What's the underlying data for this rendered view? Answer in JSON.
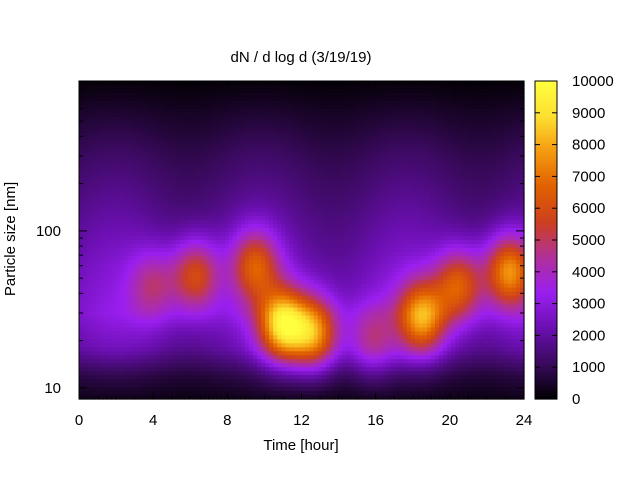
{
  "chart_data": {
    "type": "heatmap",
    "title": "dN / d log d (3/19/19)",
    "xlabel": "Time [hour]",
    "ylabel": "Particle size [nm]",
    "x_range": [
      0,
      24
    ],
    "x_ticks": [
      0,
      4,
      8,
      12,
      16,
      20,
      24
    ],
    "y_scale": "log",
    "y_range": [
      8.5,
      900
    ],
    "y_ticks": [
      10,
      100
    ],
    "colorbar": {
      "range": [
        0,
        10000
      ],
      "ticks": [
        0,
        1000,
        2000,
        3000,
        4000,
        5000,
        6000,
        7000,
        8000,
        9000,
        10000
      ],
      "colormap": [
        "#000000",
        "#3a0a5e",
        "#6a0fb0",
        "#9b1ff0",
        "#b0309a",
        "#cc4020",
        "#e06000",
        "#f49a10",
        "#fde030",
        "#ffff40"
      ]
    },
    "background_level": {
      "description_free_profile": [
        {
          "d_nm": 8.5,
          "value": 300
        },
        {
          "d_nm": 12,
          "value": 900
        },
        {
          "d_nm": 18,
          "value": 2300
        },
        {
          "d_nm": 30,
          "value": 3000
        },
        {
          "d_nm": 60,
          "value": 2600
        },
        {
          "d_nm": 120,
          "value": 2000
        },
        {
          "d_nm": 300,
          "value": 1200
        },
        {
          "d_nm": 600,
          "value": 500
        },
        {
          "d_nm": 900,
          "value": 100
        }
      ]
    },
    "events": [
      {
        "t": 4.0,
        "d_nm": 45,
        "peak": 5000
      },
      {
        "t": 6.3,
        "d_nm": 52,
        "peak": 6500
      },
      {
        "t": 9.5,
        "d_nm": 60,
        "peak": 6500
      },
      {
        "t": 11.0,
        "d_nm": 25,
        "peak": 9300
      },
      {
        "t": 12.7,
        "d_nm": 22,
        "peak": 8000
      },
      {
        "t": 15.8,
        "d_nm": 20,
        "peak": 4800
      },
      {
        "t": 18.5,
        "d_nm": 28,
        "peak": 8200
      },
      {
        "t": 20.5,
        "d_nm": 45,
        "peak": 7000
      },
      {
        "t": 23.2,
        "d_nm": 55,
        "peak": 8000
      }
    ]
  }
}
